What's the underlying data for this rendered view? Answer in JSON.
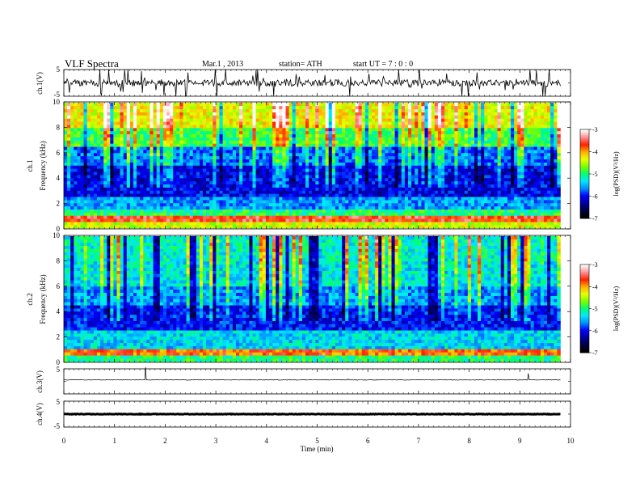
{
  "header": {
    "title": "VLF  Spectra",
    "date": "Mar.1  , 2013",
    "station": "station= ATH",
    "start_ut": "start  UT  =   7  : 0  : 0"
  },
  "colors": {
    "colormap": [
      "#000000",
      "#000040",
      "#0000a0",
      "#0000ff",
      "#0090ff",
      "#00e8ff",
      "#00ff70",
      "#7cff00",
      "#eaff00",
      "#ffb000",
      "#ff2000",
      "#ff9090",
      "#ffffff"
    ],
    "trace": "#000000",
    "background": "#ffffff"
  },
  "chart_data": [
    {
      "type": "line",
      "name": "ch1-waveform",
      "ylabel": "ch.1(V)",
      "ylim": [
        -5,
        5
      ],
      "yticks": [
        "5",
        "-5"
      ],
      "x_range_min": [
        0,
        9.8
      ],
      "description_level": "noisy trace around 0 V with impulsive spikes"
    },
    {
      "type": "heatmap",
      "name": "ch1-spectrogram",
      "ylabel": "ch.1",
      "ylabel2": "Frequency  (kHz)",
      "ylim": [
        0,
        10
      ],
      "yticks": [
        "0",
        "2",
        "4",
        "6",
        "8",
        "10"
      ],
      "x_range_min": [
        0,
        9.8
      ],
      "colorbar": {
        "label": "log(PSD)(V²/Hz)",
        "range": [
          -7,
          -3
        ],
        "ticks": [
          "-3",
          "-4",
          "-5",
          "-6",
          "-7"
        ]
      },
      "bands_khz": [
        {
          "from": 0,
          "to": 0.3,
          "level": -4.4
        },
        {
          "from": 0.3,
          "to": 0.8,
          "level": -3.6
        },
        {
          "from": 0.8,
          "to": 1.5,
          "level": -5.0
        },
        {
          "from": 1.5,
          "to": 2.5,
          "level": -5.6
        },
        {
          "from": 2.5,
          "to": 5.0,
          "level": -6.1
        },
        {
          "from": 5.0,
          "to": 6.5,
          "level": -5.7
        },
        {
          "from": 6.5,
          "to": 8.0,
          "level": -4.9
        },
        {
          "from": 8.0,
          "to": 10.0,
          "level": -4.3
        }
      ]
    },
    {
      "type": "heatmap",
      "name": "ch2-spectrogram",
      "ylabel": "ch.2",
      "ylabel2": "Frequency  (kHz)",
      "ylim": [
        0,
        10
      ],
      "yticks": [
        "0",
        "2",
        "4",
        "6",
        "8",
        "10"
      ],
      "x_range_min": [
        0,
        9.8
      ],
      "colorbar": {
        "label": "log(PSD)(V²/Hz)",
        "range": [
          -7,
          -3
        ],
        "ticks": [
          "-3",
          "-4",
          "-5",
          "-6",
          "-7"
        ]
      },
      "bands_khz": [
        {
          "from": 0,
          "to": 0.4,
          "level": -5.0
        },
        {
          "from": 0.4,
          "to": 1.0,
          "level": -3.8
        },
        {
          "from": 1.0,
          "to": 2.5,
          "level": -5.4
        },
        {
          "from": 2.5,
          "to": 4.5,
          "level": -6.0
        },
        {
          "from": 4.5,
          "to": 6.0,
          "level": -5.6
        },
        {
          "from": 6.0,
          "to": 8.0,
          "level": -5.3
        },
        {
          "from": 8.0,
          "to": 10.0,
          "level": -5.2
        }
      ]
    },
    {
      "type": "line",
      "name": "ch3-waveform",
      "ylabel": "ch.3(V)",
      "ylim": [
        -5,
        5
      ],
      "yticks": [
        "5"
      ],
      "x_range_min": [
        0,
        9.8
      ],
      "description_level": "flat trace near 0 V"
    },
    {
      "type": "line",
      "name": "ch4-waveform",
      "ylabel": "ch.4(V)",
      "ylim": [
        -5,
        5
      ],
      "yticks": [
        "5",
        "-5"
      ],
      "x_range_min": [
        0,
        9.8
      ],
      "description_level": "thick flat trace near 0 V"
    }
  ],
  "xaxis": {
    "label": "Time  (min)",
    "xlim": [
      0,
      10
    ],
    "ticks": [
      "0",
      "1",
      "2",
      "3",
      "4",
      "5",
      "6",
      "7",
      "8",
      "9",
      "10"
    ]
  }
}
